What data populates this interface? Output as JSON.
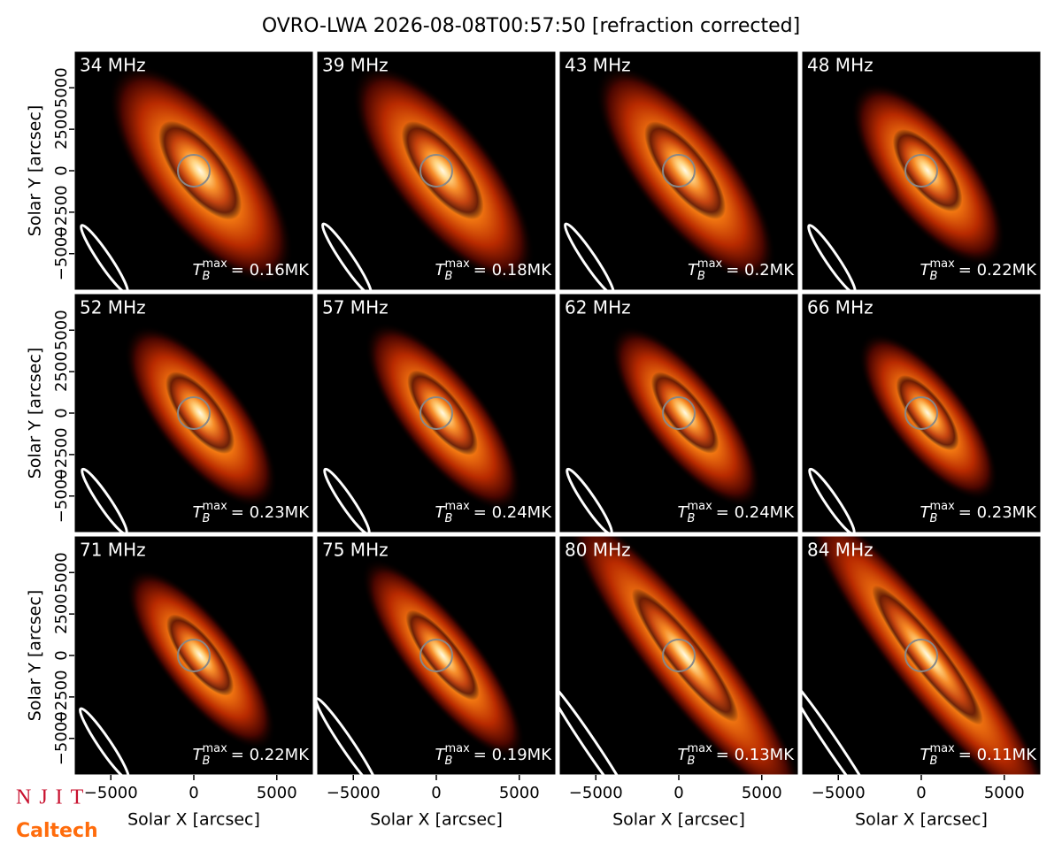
{
  "title": "OVRO-LWA 2026-08-08T00:57:50 [refraction corrected]",
  "axes": {
    "xlabel": "Solar X [arcsec]",
    "ylabel": "Solar Y [arcsec]",
    "xlim": [
      -7200,
      7200
    ],
    "ylim": [
      -7200,
      7200
    ],
    "xticks": [
      {
        "value": -5000,
        "label": "−5000"
      },
      0,
      5000
    ],
    "yticks": [
      {
        "value": -5000,
        "label": "−5000"
      },
      {
        "value": -2500,
        "label": "−2500"
      },
      0,
      2500,
      5000
    ]
  },
  "logos": {
    "top": "NJIT",
    "bottom": "Caltech"
  },
  "chart_data": [
    {
      "type": "image",
      "title": "34 MHz",
      "annotation": {
        "symbol": "T",
        "subscript": "B",
        "superscript": "max",
        "text": "= 0.16MK"
      }
    },
    {
      "type": "image",
      "title": "39 MHz",
      "annotation": {
        "symbol": "T",
        "subscript": "B",
        "superscript": "max",
        "text": "= 0.18MK"
      }
    },
    {
      "type": "image",
      "title": "43 MHz",
      "annotation": {
        "symbol": "T",
        "subscript": "B",
        "superscript": "max",
        "text": "= 0.2MK"
      }
    },
    {
      "type": "image",
      "title": "48 MHz",
      "annotation": {
        "symbol": "T",
        "subscript": "B",
        "superscript": "max",
        "text": "= 0.22MK"
      }
    },
    {
      "type": "image",
      "title": "52 MHz",
      "annotation": {
        "symbol": "T",
        "subscript": "B",
        "superscript": "max",
        "text": "= 0.23MK"
      }
    },
    {
      "type": "image",
      "title": "57 MHz",
      "annotation": {
        "symbol": "T",
        "subscript": "B",
        "superscript": "max",
        "text": "= 0.24MK"
      }
    },
    {
      "type": "image",
      "title": "62 MHz",
      "annotation": {
        "symbol": "T",
        "subscript": "B",
        "superscript": "max",
        "text": "= 0.24MK"
      }
    },
    {
      "type": "image",
      "title": "66 MHz",
      "annotation": {
        "symbol": "T",
        "subscript": "B",
        "superscript": "max",
        "text": "= 0.23MK"
      }
    },
    {
      "type": "image",
      "title": "71 MHz",
      "annotation": {
        "symbol": "T",
        "subscript": "B",
        "superscript": "max",
        "text": "= 0.22MK"
      }
    },
    {
      "type": "image",
      "title": "75 MHz",
      "annotation": {
        "symbol": "T",
        "subscript": "B",
        "superscript": "max",
        "text": "= 0.19MK"
      }
    },
    {
      "type": "image",
      "title": "80 MHz",
      "annotation": {
        "symbol": "T",
        "subscript": "B",
        "superscript": "max",
        "text": "= 0.13MK"
      }
    },
    {
      "type": "image",
      "title": "84 MHz",
      "annotation": {
        "symbol": "T",
        "subscript": "B",
        "superscript": "max",
        "text": "= 0.11MK"
      }
    }
  ]
}
